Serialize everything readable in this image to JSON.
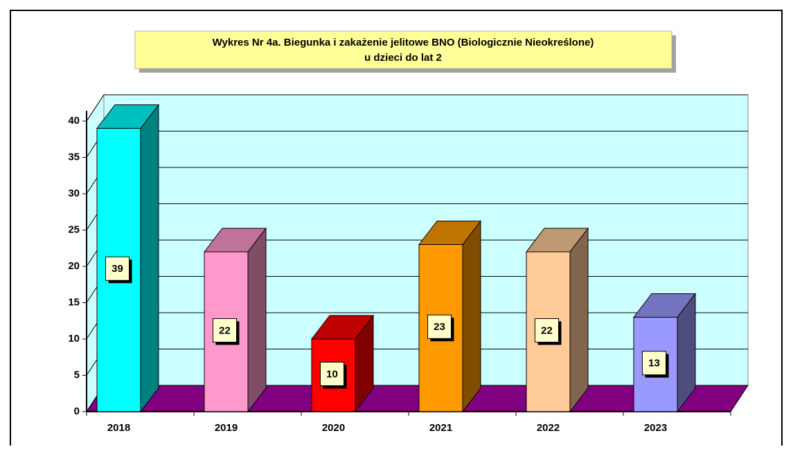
{
  "chart_data": {
    "type": "bar3d",
    "title": [
      "Wykres Nr 4a. Biegunka i zakażenie jelitowe BNO (Biologicznie Nieokreślone)",
      "u dzieci do lat 2"
    ],
    "categories": [
      "2018",
      "2019",
      "2020",
      "2021",
      "2022",
      "2023"
    ],
    "values": [
      39,
      22,
      10,
      23,
      22,
      13
    ],
    "colors": [
      "#00ffff",
      "#ff99cc",
      "#ff0000",
      "#ff9900",
      "#ffcc99",
      "#9999ff"
    ],
    "ylim": [
      0,
      40
    ],
    "yticks": [
      0,
      5,
      10,
      15,
      20,
      25,
      30,
      35,
      40
    ],
    "grid": true
  }
}
